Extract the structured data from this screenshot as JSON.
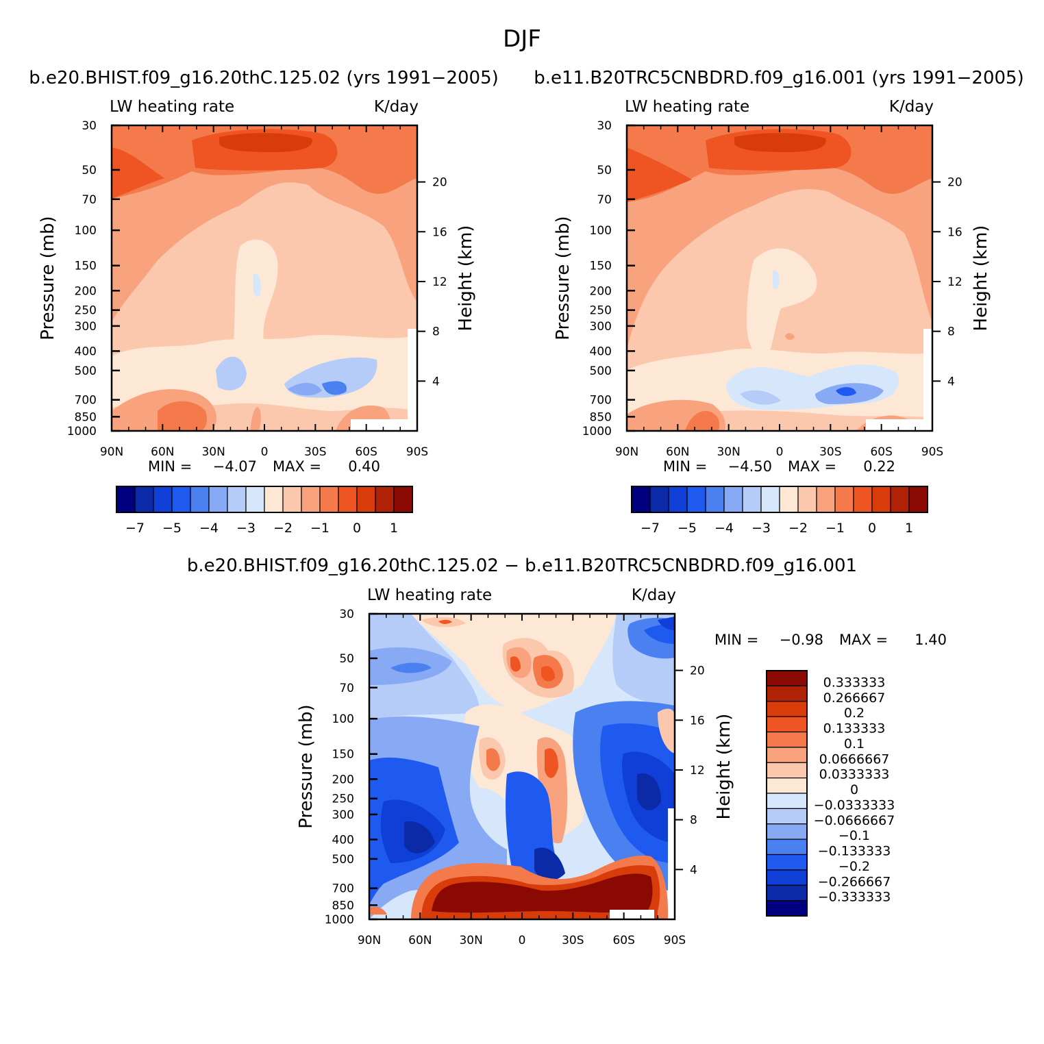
{
  "figure_title": "DJF",
  "chart_data": [
    {
      "type": "heatmap",
      "id": "panel1",
      "subtitle": "b.e20.BHIST.f09_g16.20thC.125.02 (yrs 1991−2005)",
      "left_label": "LW heating rate",
      "right_label": "K/day",
      "ylabel": "Pressure (mb)",
      "ylabel_right": "Height (km)",
      "x_ticks": [
        "90N",
        "60N",
        "30N",
        "0",
        "30S",
        "60S",
        "90S"
      ],
      "y_ticks": [
        "30",
        "50",
        "70",
        "100",
        "150",
        "200",
        "250",
        "300",
        "400",
        "500",
        "700",
        "850",
        "1000"
      ],
      "y_values": [
        30,
        50,
        70,
        100,
        150,
        200,
        250,
        300,
        400,
        500,
        700,
        850,
        1000
      ],
      "height_ticks": [
        "20",
        "16",
        "12",
        "8",
        "4"
      ],
      "ylim": [
        1000,
        30
      ],
      "stats": {
        "min_label": "MIN =",
        "min": "−4.07",
        "max_label": "MAX =",
        "max": "0.40"
      },
      "colorbar_labels": [
        "−7",
        "−5",
        "−4",
        "−3",
        "−2",
        "−1",
        "0",
        "1"
      ]
    },
    {
      "type": "heatmap",
      "id": "panel2",
      "subtitle": "b.e11.B20TRC5CNBDRD.f09_g16.001 (yrs 1991−2005)",
      "left_label": "LW heating rate",
      "right_label": "K/day",
      "ylabel": "Pressure (mb)",
      "ylabel_right": "Height (km)",
      "x_ticks": [
        "90N",
        "60N",
        "30N",
        "0",
        "30S",
        "60S",
        "90S"
      ],
      "y_ticks": [
        "30",
        "50",
        "70",
        "100",
        "150",
        "200",
        "250",
        "300",
        "400",
        "500",
        "700",
        "850",
        "1000"
      ],
      "y_values": [
        30,
        50,
        70,
        100,
        150,
        200,
        250,
        300,
        400,
        500,
        700,
        850,
        1000
      ],
      "height_ticks": [
        "20",
        "16",
        "12",
        "8",
        "4"
      ],
      "ylim": [
        1000,
        30
      ],
      "stats": {
        "min_label": "MIN =",
        "min": "−4.50",
        "max_label": "MAX =",
        "max": "0.22"
      },
      "colorbar_labels": [
        "−7",
        "−5",
        "−4",
        "−3",
        "−2",
        "−1",
        "0",
        "1"
      ]
    },
    {
      "type": "heatmap",
      "id": "panel3",
      "subtitle": "b.e20.BHIST.f09_g16.20thC.125.02 − b.e11.B20TRC5CNBDRD.f09_g16.001",
      "left_label": "LW heating rate",
      "right_label": "K/day",
      "ylabel": "Pressure (mb)",
      "ylabel_right": "Height (km)",
      "x_ticks": [
        "90N",
        "60N",
        "30N",
        "0",
        "30S",
        "60S",
        "90S"
      ],
      "y_ticks": [
        "30",
        "50",
        "70",
        "100",
        "150",
        "200",
        "250",
        "300",
        "400",
        "500",
        "700",
        "850",
        "1000"
      ],
      "y_values": [
        30,
        50,
        70,
        100,
        150,
        200,
        250,
        300,
        400,
        500,
        700,
        850,
        1000
      ],
      "height_ticks": [
        "20",
        "16",
        "12",
        "8",
        "4"
      ],
      "ylim": [
        1000,
        30
      ],
      "stats": {
        "min_label": "MIN =",
        "min": "−0.98",
        "max_label": "MAX =",
        "max": "1.40"
      },
      "colorbar_labels": [
        "0.333333",
        "0.266667",
        "0.2",
        "0.133333",
        "0.1",
        "0.0666667",
        "0.0333333",
        "0",
        "−0.0333333",
        "−0.0666667",
        "−0.1",
        "−0.133333",
        "−0.2",
        "−0.266667",
        "−0.333333"
      ]
    }
  ],
  "palettes": {
    "abs": [
      "#000080",
      "#0a2aa8",
      "#0f3fd6",
      "#1f5af0",
      "#4a80f0",
      "#88aaf5",
      "#b5ccf8",
      "#d6e6fb",
      "#fde8d6",
      "#fbc8ad",
      "#f8a37e",
      "#f47a4c",
      "#ef5522",
      "#d73c0a",
      "#b02205",
      "#8a0a03"
    ],
    "diff": [
      "#8a0a03",
      "#b02205",
      "#d73c0a",
      "#ef5522",
      "#f47a4c",
      "#f8a37e",
      "#fbc8ad",
      "#fde8d6",
      "#d6e6fb",
      "#b5ccf8",
      "#88aaf5",
      "#4a80f0",
      "#1f5af0",
      "#0f3fd6",
      "#0a2aa8",
      "#000080"
    ]
  }
}
